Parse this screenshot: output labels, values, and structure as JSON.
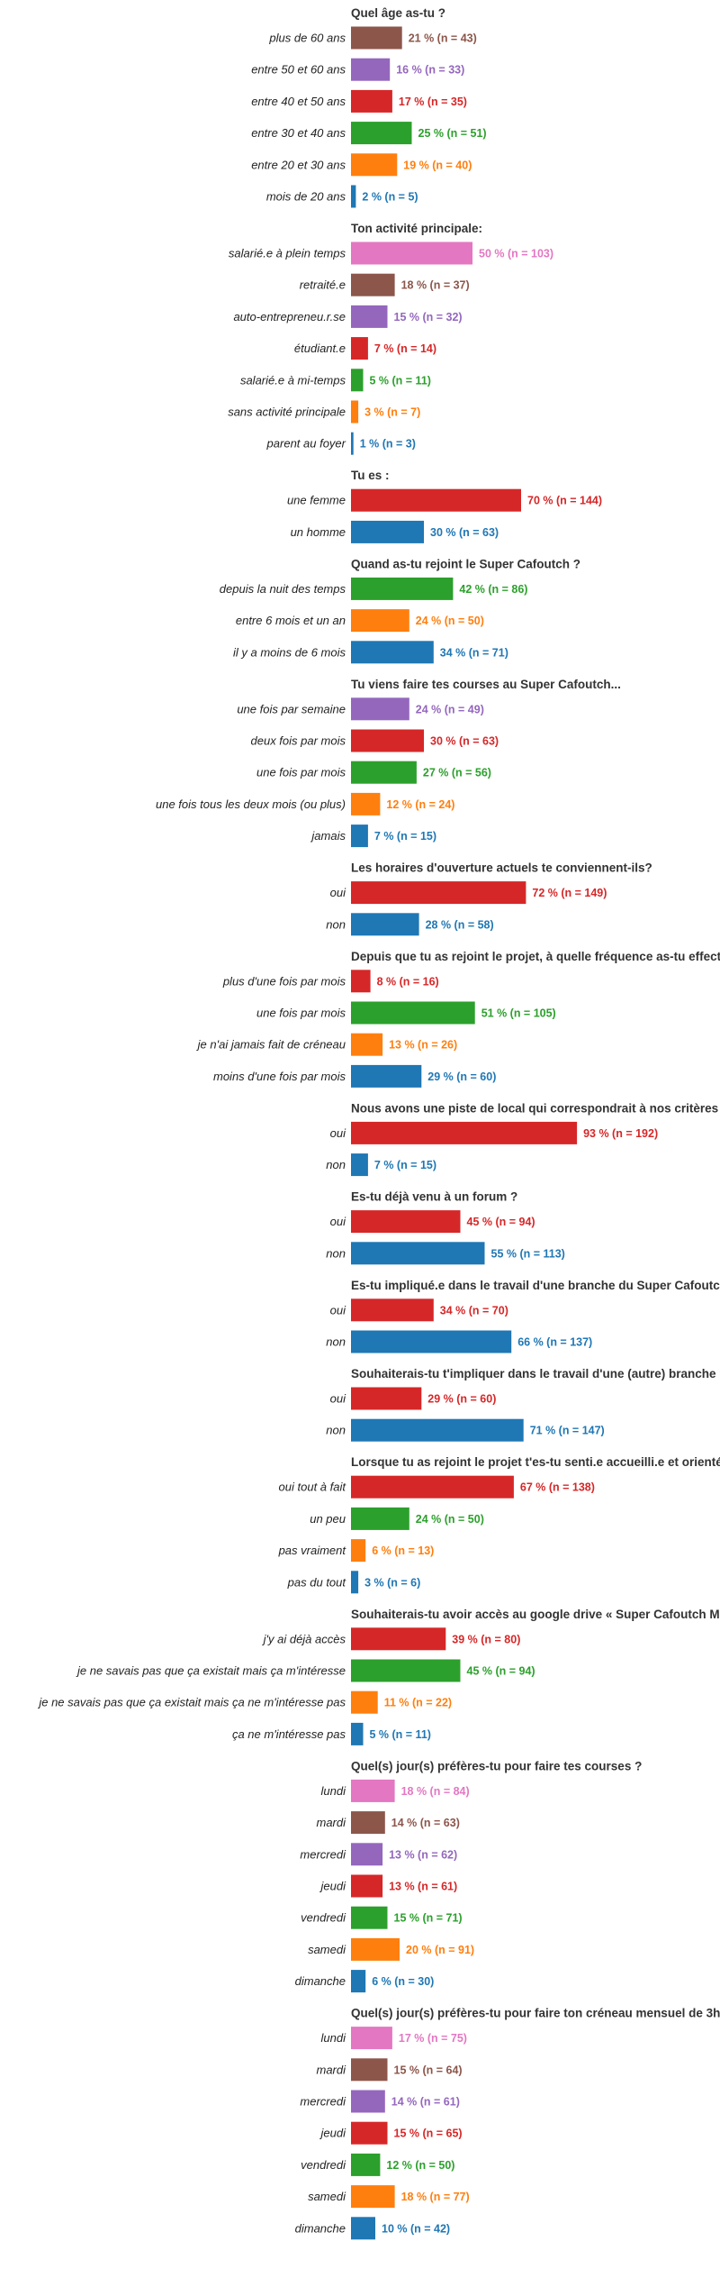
{
  "colors": {
    "blue": "#1f77b4",
    "orange": "#ff7f0e",
    "green": "#2ca02c",
    "red": "#d62728",
    "purple": "#9467bd",
    "brown": "#8c564b",
    "pink": "#e377c2"
  },
  "chart_data": [
    {
      "type": "bar",
      "orientation": "horizontal",
      "title": "Quel âge as-tu ?",
      "categories": [
        "plus de 60 ans",
        "entre 50 et 60 ans",
        "entre 40 et 50 ans",
        "entre 30 et 40 ans",
        "entre 20 et 30 ans",
        "mois de 20 ans"
      ],
      "values": [
        21,
        16,
        17,
        25,
        19,
        2
      ],
      "counts": [
        43,
        33,
        35,
        51,
        40,
        5
      ],
      "labels": [
        "21 % (n = 43)",
        "16 % (n = 33)",
        "17 % (n = 35)",
        "25 % (n = 51)",
        "19 % (n = 40)",
        "2 % (n = 5)"
      ],
      "colors": [
        "brown",
        "purple",
        "red",
        "green",
        "orange",
        "blue"
      ]
    },
    {
      "type": "bar",
      "orientation": "horizontal",
      "title": "Ton activité principale:",
      "categories": [
        "salarié.e à plein temps",
        "retraité.e",
        "auto-entrepreneu.r.se",
        "étudiant.e",
        "salarié.e à mi-temps",
        "sans activité principale",
        "parent au foyer"
      ],
      "values": [
        50,
        18,
        15,
        7,
        5,
        3,
        1
      ],
      "counts": [
        103,
        37,
        32,
        14,
        11,
        7,
        3
      ],
      "labels": [
        "50 % (n = 103)",
        "18 % (n = 37)",
        "15 % (n = 32)",
        "7 % (n = 14)",
        "5 % (n = 11)",
        "3 % (n = 7)",
        "1 % (n = 3)"
      ],
      "colors": [
        "pink",
        "brown",
        "purple",
        "red",
        "green",
        "orange",
        "blue"
      ]
    },
    {
      "type": "bar",
      "orientation": "horizontal",
      "title": "Tu es :",
      "categories": [
        "une femme",
        "un homme"
      ],
      "values": [
        70,
        30
      ],
      "counts": [
        144,
        63
      ],
      "labels": [
        "70 % (n = 144)",
        "30 % (n = 63)"
      ],
      "colors": [
        "red",
        "blue"
      ]
    },
    {
      "type": "bar",
      "orientation": "horizontal",
      "title": "Quand as-tu rejoint le Super Cafoutch ?",
      "categories": [
        "depuis la nuit des temps",
        "entre 6 mois et un an",
        "il y a moins de 6 mois"
      ],
      "values": [
        42,
        24,
        34
      ],
      "counts": [
        86,
        50,
        71
      ],
      "labels": [
        "42 % (n = 86)",
        "24 % (n = 50)",
        "34 % (n = 71)"
      ],
      "colors": [
        "green",
        "orange",
        "blue"
      ]
    },
    {
      "type": "bar",
      "orientation": "horizontal",
      "title": "Tu viens faire tes courses au Super Cafoutch...",
      "categories": [
        "une fois par semaine",
        "deux fois par mois",
        "une fois par mois",
        "une fois tous les deux mois (ou plus)",
        "jamais"
      ],
      "values": [
        24,
        30,
        27,
        12,
        7
      ],
      "counts": [
        49,
        63,
        56,
        24,
        15
      ],
      "labels": [
        "24 % (n = 49)",
        "30 % (n = 63)",
        "27 % (n = 56)",
        "12 % (n = 24)",
        "7 % (n = 15)"
      ],
      "colors": [
        "purple",
        "red",
        "green",
        "orange",
        "blue"
      ]
    },
    {
      "type": "bar",
      "orientation": "horizontal",
      "title": "Les horaires d'ouverture actuels te conviennent-ils?",
      "categories": [
        "oui",
        "non"
      ],
      "values": [
        72,
        28
      ],
      "counts": [
        149,
        58
      ],
      "labels": [
        "72 % (n = 149)",
        "28 % (n = 58)"
      ],
      "colors": [
        "red",
        "blue"
      ]
    },
    {
      "type": "bar",
      "orientation": "horizontal",
      "title": "Depuis que tu as rejoint le projet, à quelle fréquence as-tu effectué",
      "categories": [
        "plus d'une fois par mois",
        "une fois par mois",
        "je n'ai jamais fait de créneau",
        "moins d'une fois par mois"
      ],
      "values": [
        8,
        51,
        13,
        29
      ],
      "counts": [
        16,
        105,
        26,
        60
      ],
      "labels": [
        "8 % (n = 16)",
        "51 % (n = 105)",
        "13 % (n = 26)",
        "29 % (n = 60)"
      ],
      "colors": [
        "red",
        "green",
        "orange",
        "blue"
      ]
    },
    {
      "type": "bar",
      "orientation": "horizontal",
      "title": "Nous avons une piste de local qui correspondrait à nos critères e",
      "categories": [
        "oui",
        "non"
      ],
      "values": [
        93,
        7
      ],
      "counts": [
        192,
        15
      ],
      "labels": [
        "93 % (n = 192)",
        "7 % (n = 15)"
      ],
      "colors": [
        "red",
        "blue"
      ]
    },
    {
      "type": "bar",
      "orientation": "horizontal",
      "title": "Es-tu déjà venu à un forum ?",
      "categories": [
        "oui",
        "non"
      ],
      "values": [
        45,
        55
      ],
      "counts": [
        94,
        113
      ],
      "labels": [
        "45 % (n = 94)",
        "55 % (n = 113)"
      ],
      "colors": [
        "red",
        "blue"
      ]
    },
    {
      "type": "bar",
      "orientation": "horizontal",
      "title": "Es-tu impliqué.e dans le travail d'une branche du Super Cafoutch",
      "categories": [
        "oui",
        "non"
      ],
      "values": [
        34,
        66
      ],
      "counts": [
        70,
        137
      ],
      "labels": [
        "34 % (n = 70)",
        "66 % (n = 137)"
      ],
      "colors": [
        "red",
        "blue"
      ]
    },
    {
      "type": "bar",
      "orientation": "horizontal",
      "title": "Souhaiterais-tu t'impliquer dans le travail d'une (autre) branche ?",
      "categories": [
        "oui",
        "non"
      ],
      "values": [
        29,
        71
      ],
      "counts": [
        60,
        147
      ],
      "labels": [
        "29 % (n = 60)",
        "71 % (n = 147)"
      ],
      "colors": [
        "red",
        "blue"
      ]
    },
    {
      "type": "bar",
      "orientation": "horizontal",
      "title": "Lorsque tu as rejoint le projet t'es-tu senti.e accueilli.e et orienté",
      "categories": [
        "oui tout à fait",
        "un peu",
        "pas vraiment",
        "pas du tout"
      ],
      "values": [
        67,
        24,
        6,
        3
      ],
      "counts": [
        138,
        50,
        13,
        6
      ],
      "labels": [
        "67 % (n = 138)",
        "24 % (n = 50)",
        "6 % (n = 13)",
        "3 % (n = 6)"
      ],
      "colors": [
        "red",
        "green",
        "orange",
        "blue"
      ]
    },
    {
      "type": "bar",
      "orientation": "horizontal",
      "title": "Souhaiterais-tu avoir accès au google drive « Super Cafoutch Me",
      "categories": [
        "j'y ai déjà accès",
        "je ne savais pas que ça existait mais ça m'intéresse",
        "je ne savais pas que ça existait mais ça ne m'intéresse pas",
        "ça ne m'intéresse pas"
      ],
      "values": [
        39,
        45,
        11,
        5
      ],
      "counts": [
        80,
        94,
        22,
        11
      ],
      "labels": [
        "39 % (n = 80)",
        "45 % (n = 94)",
        "11 % (n = 22)",
        "5 % (n = 11)"
      ],
      "colors": [
        "red",
        "green",
        "orange",
        "blue"
      ]
    },
    {
      "type": "bar",
      "orientation": "horizontal",
      "title": "Quel(s) jour(s) préfères-tu pour faire tes courses ?",
      "categories": [
        "lundi",
        "mardi",
        "mercredi",
        "jeudi",
        "vendredi",
        "samedi",
        "dimanche"
      ],
      "values": [
        18,
        14,
        13,
        13,
        15,
        20,
        6
      ],
      "counts": [
        84,
        63,
        62,
        61,
        71,
        91,
        30
      ],
      "labels": [
        "18 % (n = 84)",
        "14 % (n = 63)",
        "13 % (n = 62)",
        "13 % (n = 61)",
        "15 % (n = 71)",
        "20 % (n = 91)",
        "6 % (n = 30)"
      ],
      "colors": [
        "pink",
        "brown",
        "purple",
        "red",
        "green",
        "orange",
        "blue"
      ]
    },
    {
      "type": "bar",
      "orientation": "horizontal",
      "title": "Quel(s) jour(s) préfères-tu pour faire ton créneau mensuel de 3h",
      "categories": [
        "lundi",
        "mardi",
        "mercredi",
        "jeudi",
        "vendredi",
        "samedi",
        "dimanche"
      ],
      "values": [
        17,
        15,
        14,
        15,
        12,
        18,
        10
      ],
      "counts": [
        75,
        64,
        61,
        65,
        50,
        77,
        42
      ],
      "labels": [
        "17 % (n = 75)",
        "15 % (n = 64)",
        "14 % (n = 61)",
        "15 % (n = 65)",
        "12 % (n = 50)",
        "18 % (n = 77)",
        "10 % (n = 42)"
      ],
      "colors": [
        "pink",
        "brown",
        "purple",
        "red",
        "green",
        "orange",
        "blue"
      ]
    }
  ]
}
